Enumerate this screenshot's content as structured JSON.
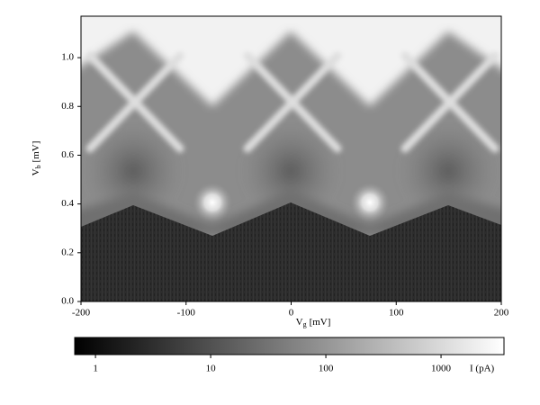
{
  "chart_data": {
    "type": "heatmap",
    "xlabel": {
      "symbol": "V",
      "subscript": "g",
      "unit": "[mV]"
    },
    "ylabel": {
      "symbol": "V",
      "subscript": "b",
      "unit": "[mV]"
    },
    "xlim": [
      -200,
      200
    ],
    "xticks": [
      -200,
      -100,
      0,
      100,
      200
    ],
    "ylim": [
      0,
      1.17
    ],
    "yticks": [
      {
        "value": 0,
        "label": "0.0"
      },
      0.2,
      0.4,
      0.6,
      0.8,
      {
        "value": 1,
        "label": "1.0"
      }
    ],
    "colorbar": {
      "label": "I (pA)",
      "log": true,
      "lim": [
        0.66,
        3520
      ],
      "ticks": [
        1,
        10,
        100,
        1000
      ]
    }
  }
}
